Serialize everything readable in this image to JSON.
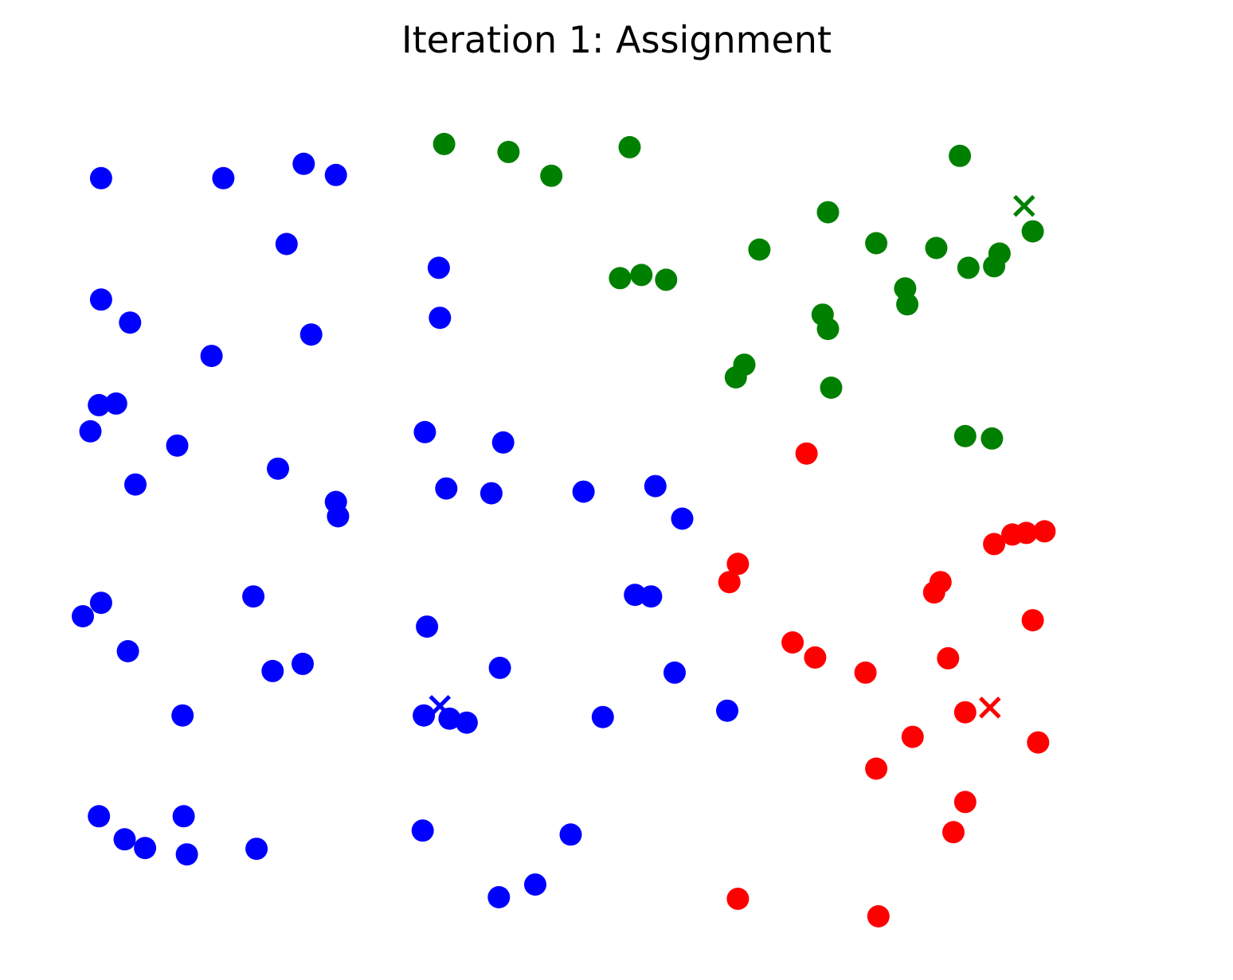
{
  "chart_data": {
    "type": "scatter",
    "title": "Iteration 1: Assignment",
    "xlabel": "",
    "ylabel": "",
    "xlim": [
      0,
      10
    ],
    "ylim": [
      0,
      10
    ],
    "axes_visible": false,
    "grid": false,
    "legend": "none",
    "colors": {
      "blue": "#0000ff",
      "green": "#008000",
      "red": "#ff0000"
    },
    "series": [
      {
        "color": "blue",
        "points": [
          [
            0.2,
            9.19
          ],
          [
            1.34,
            9.19
          ],
          [
            2.09,
            9.37
          ],
          [
            2.39,
            9.23
          ],
          [
            1.93,
            8.36
          ],
          [
            3.35,
            8.06
          ],
          [
            0.2,
            7.66
          ],
          [
            0.47,
            7.37
          ],
          [
            2.16,
            7.22
          ],
          [
            1.23,
            6.95
          ],
          [
            3.36,
            7.43
          ],
          [
            0.18,
            6.33
          ],
          [
            0.34,
            6.35
          ],
          [
            0.1,
            6.0
          ],
          [
            0.91,
            5.82
          ],
          [
            0.52,
            5.33
          ],
          [
            1.85,
            5.53
          ],
          [
            2.39,
            5.11
          ],
          [
            2.41,
            4.93
          ],
          [
            3.22,
            5.99
          ],
          [
            3.42,
            5.28
          ],
          [
            3.84,
            5.22
          ],
          [
            3.95,
            5.86
          ],
          [
            4.7,
            5.24
          ],
          [
            5.37,
            5.31
          ],
          [
            5.62,
            4.9
          ],
          [
            0.2,
            3.84
          ],
          [
            0.03,
            3.67
          ],
          [
            0.45,
            3.23
          ],
          [
            1.62,
            3.92
          ],
          [
            1.8,
            2.98
          ],
          [
            2.08,
            3.07
          ],
          [
            3.24,
            3.54
          ],
          [
            3.92,
            3.02
          ],
          [
            5.18,
            3.94
          ],
          [
            5.33,
            3.92
          ],
          [
            5.55,
            2.96
          ],
          [
            6.04,
            2.48
          ],
          [
            0.96,
            2.42
          ],
          [
            3.21,
            2.42
          ],
          [
            3.45,
            2.38
          ],
          [
            3.61,
            2.33
          ],
          [
            4.88,
            2.4
          ],
          [
            0.18,
            1.15
          ],
          [
            0.42,
            0.86
          ],
          [
            0.61,
            0.75
          ],
          [
            0.97,
            1.15
          ],
          [
            1.0,
            0.67
          ],
          [
            1.65,
            0.74
          ],
          [
            3.2,
            0.97
          ],
          [
            3.91,
            0.13
          ],
          [
            4.25,
            0.29
          ],
          [
            4.58,
            0.92
          ]
        ]
      },
      {
        "color": "green",
        "points": [
          [
            3.4,
            9.62
          ],
          [
            4.0,
            9.52
          ],
          [
            4.4,
            9.22
          ],
          [
            5.13,
            9.58
          ],
          [
            8.21,
            9.47
          ],
          [
            6.98,
            8.76
          ],
          [
            7.43,
            8.37
          ],
          [
            7.99,
            8.31
          ],
          [
            8.89,
            8.52
          ],
          [
            6.34,
            8.29
          ],
          [
            5.04,
            7.93
          ],
          [
            5.24,
            7.97
          ],
          [
            5.47,
            7.91
          ],
          [
            8.58,
            8.24
          ],
          [
            8.29,
            8.06
          ],
          [
            8.53,
            8.08
          ],
          [
            7.7,
            7.8
          ],
          [
            7.72,
            7.6
          ],
          [
            6.93,
            7.47
          ],
          [
            6.98,
            7.29
          ],
          [
            6.2,
            6.84
          ],
          [
            6.12,
            6.68
          ],
          [
            7.01,
            6.55
          ],
          [
            8.26,
            5.94
          ],
          [
            8.51,
            5.91
          ]
        ]
      },
      {
        "color": "red",
        "points": [
          [
            6.78,
            5.72
          ],
          [
            8.53,
            4.58
          ],
          [
            8.7,
            4.7
          ],
          [
            8.83,
            4.72
          ],
          [
            9.0,
            4.74
          ],
          [
            6.14,
            4.33
          ],
          [
            6.06,
            4.1
          ],
          [
            8.03,
            4.1
          ],
          [
            7.97,
            3.97
          ],
          [
            8.89,
            3.62
          ],
          [
            6.65,
            3.34
          ],
          [
            6.86,
            3.15
          ],
          [
            7.33,
            2.96
          ],
          [
            8.1,
            3.14
          ],
          [
            8.26,
            2.46
          ],
          [
            7.77,
            2.15
          ],
          [
            8.94,
            2.08
          ],
          [
            7.43,
            1.75
          ],
          [
            8.26,
            1.33
          ],
          [
            8.15,
            0.95
          ],
          [
            6.14,
            0.11
          ],
          [
            7.45,
            -0.11
          ]
        ]
      }
    ],
    "centroids": [
      {
        "color": "blue",
        "x": 3.36,
        "y": 2.54
      },
      {
        "color": "green",
        "x": 8.81,
        "y": 8.84
      },
      {
        "color": "red",
        "x": 8.49,
        "y": 2.52
      }
    ]
  }
}
